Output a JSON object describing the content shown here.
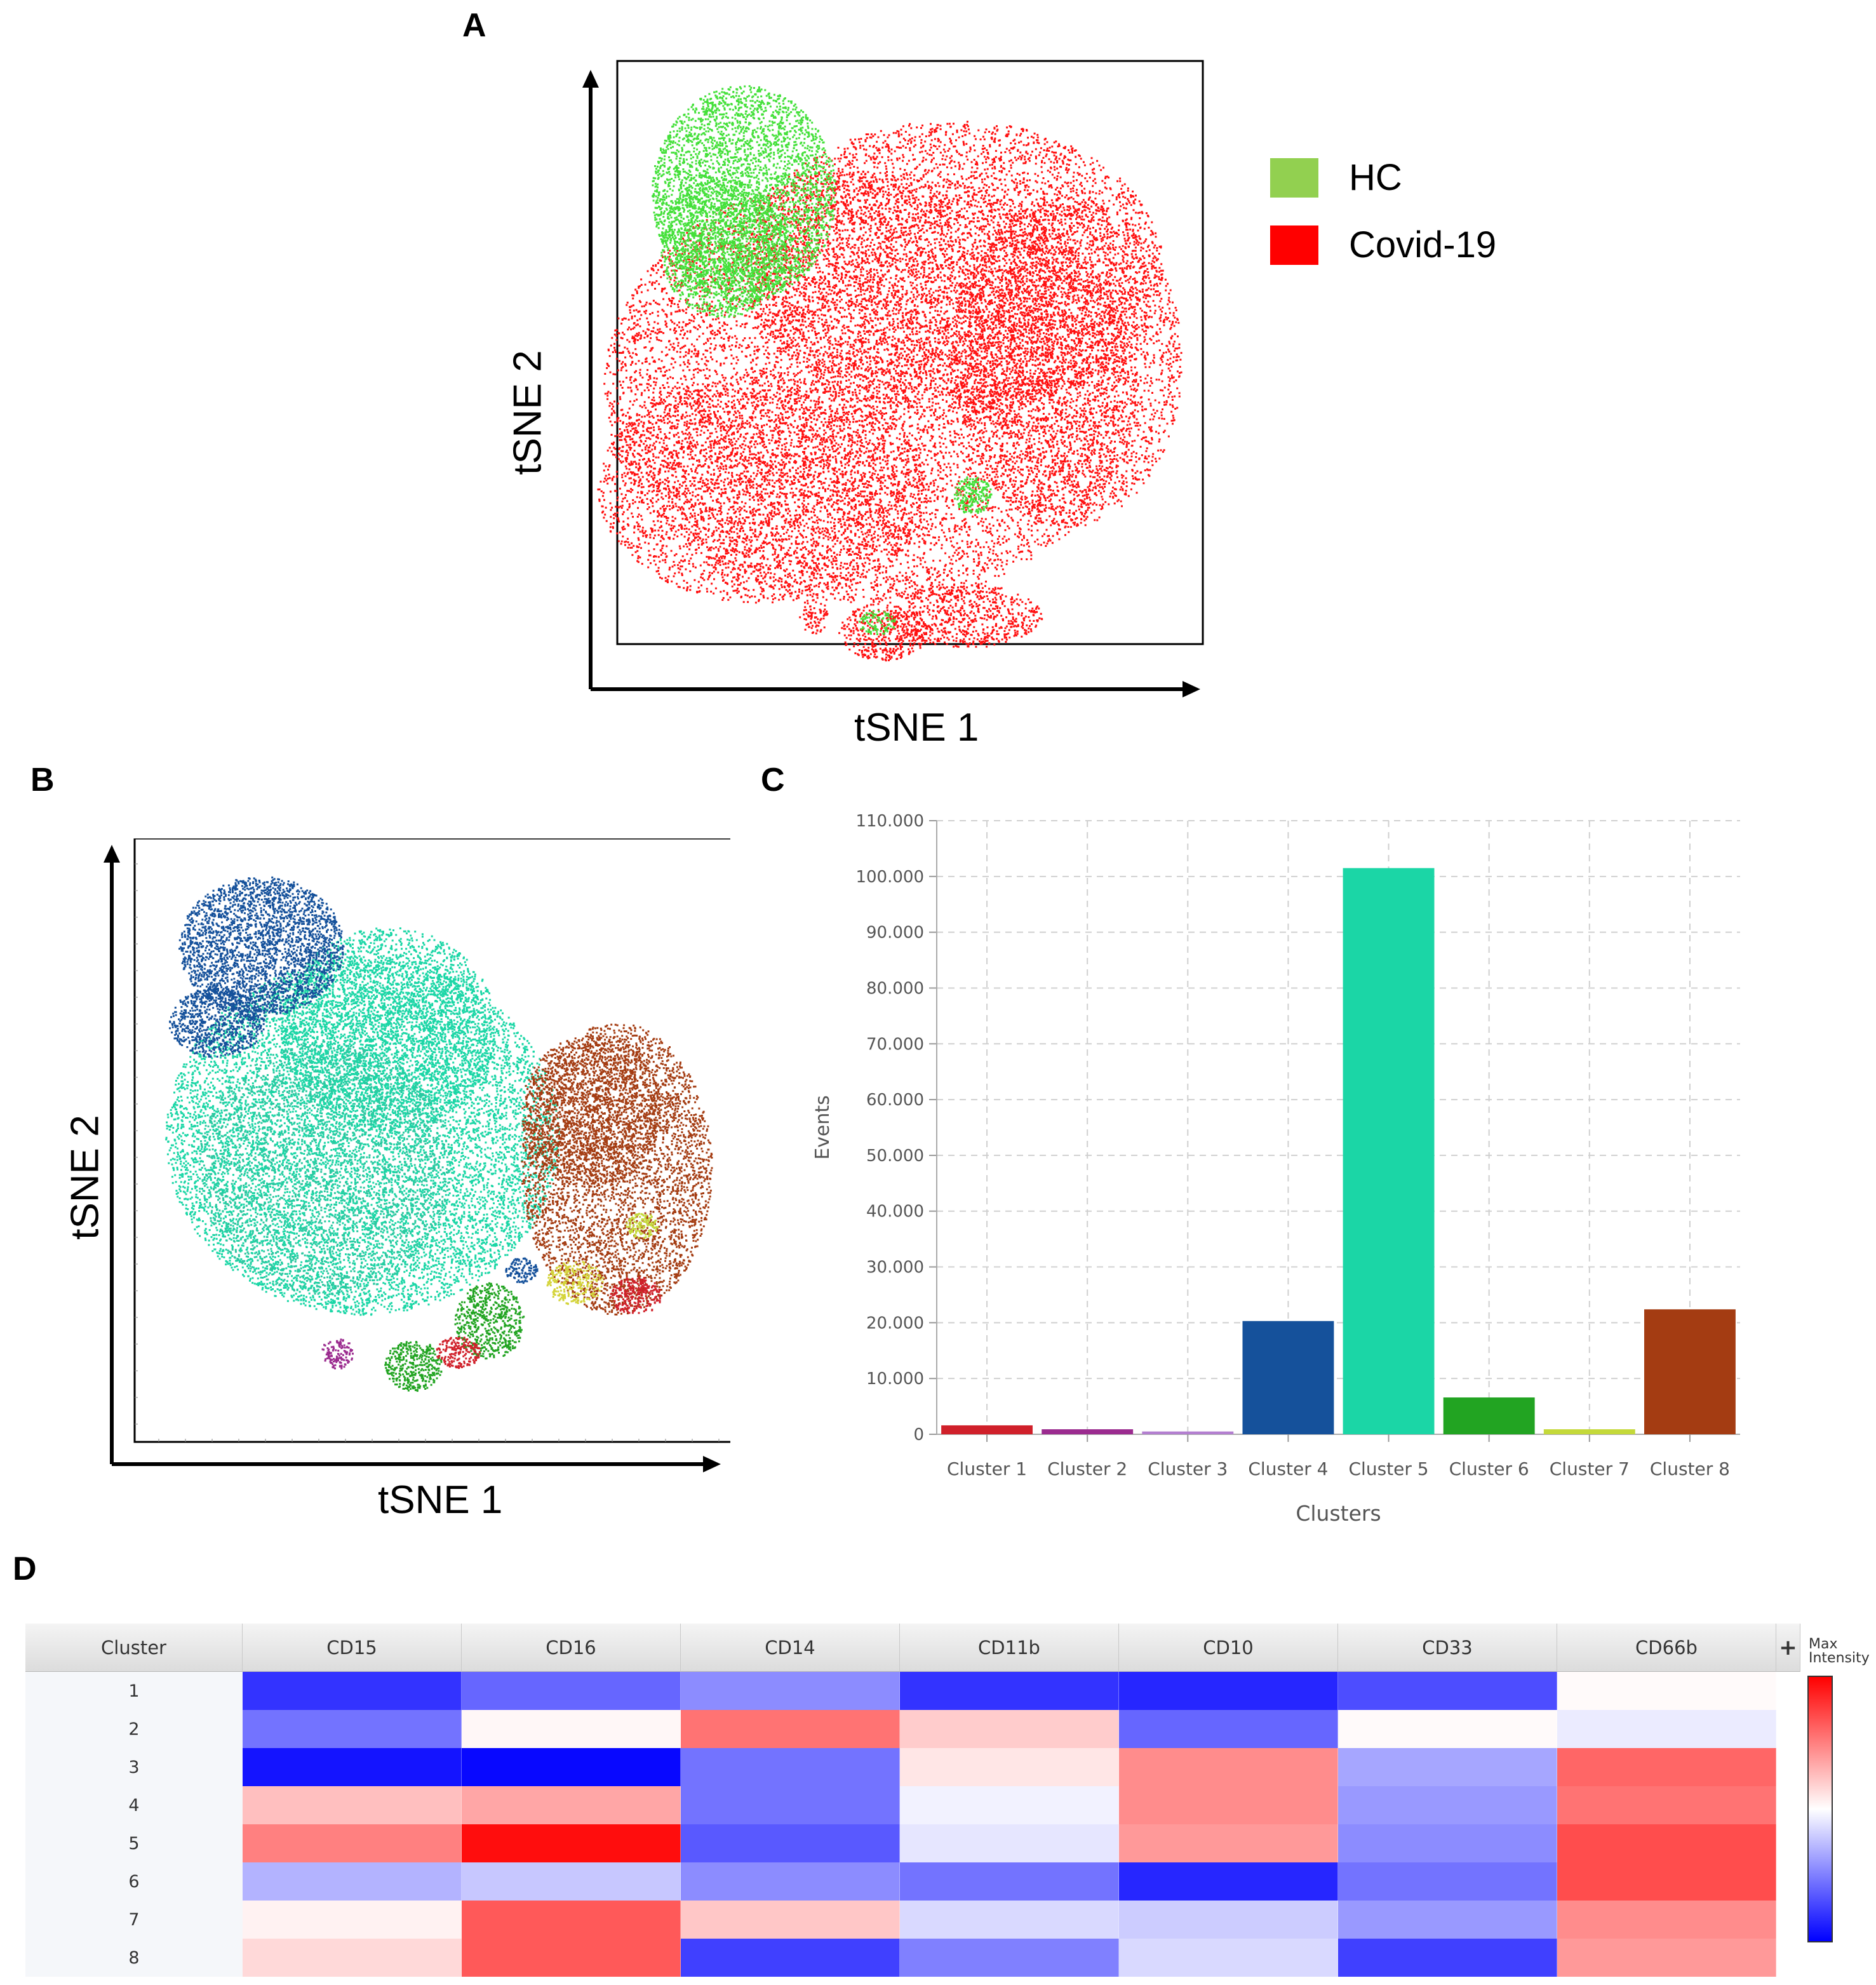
{
  "panels": {
    "a": "A",
    "b": "B",
    "c": "C",
    "d": "D"
  },
  "panel_a": {
    "xlabel": "tSNE 1",
    "ylabel": "tSNE 2",
    "legend": [
      {
        "label": "HC",
        "color": "#92d050"
      },
      {
        "label": "Covid-19",
        "color": "#ff0000"
      }
    ]
  },
  "panel_b": {
    "xlabel": "tSNE 1",
    "ylabel": "tSNE 2"
  },
  "chart_data": [
    {
      "type": "bar",
      "title": "",
      "xlabel": "Clusters",
      "ylabel": "Events",
      "ylim": [
        0,
        110000
      ],
      "yticks": [
        "0",
        "10.000",
        "20.000",
        "30.000",
        "40.000",
        "50.000",
        "60.000",
        "70.000",
        "80.000",
        "90.000",
        "100.000",
        "110.000"
      ],
      "categories": [
        "Cluster 1",
        "Cluster 2",
        "Cluster 3",
        "Cluster 4",
        "Cluster 5",
        "Cluster 6",
        "Cluster 7",
        "Cluster 8"
      ],
      "values": [
        1600,
        900,
        500,
        20300,
        101500,
        6600,
        900,
        22400
      ],
      "colors": [
        "#d0202a",
        "#9b2b8f",
        "#b37fd0",
        "#15519b",
        "#1bd6a6",
        "#22a422",
        "#c4d93a",
        "#a43c12"
      ],
      "grid": true
    },
    {
      "type": "heatmap",
      "corner_label": "Cluster",
      "columns": [
        "CD15",
        "CD16",
        "CD14",
        "CD11b",
        "CD10",
        "CD33",
        "CD66b"
      ],
      "rows": [
        "1",
        "2",
        "3",
        "4",
        "5",
        "6",
        "7",
        "8"
      ],
      "values": [
        [
          -0.8,
          -0.6,
          -0.45,
          -0.8,
          -0.85,
          -0.7,
          0.02
        ],
        [
          -0.55,
          0.03,
          0.55,
          0.2,
          -0.6,
          0.02,
          -0.08
        ],
        [
          -0.92,
          -0.97,
          -0.55,
          0.1,
          0.45,
          -0.35,
          0.6
        ],
        [
          0.25,
          0.35,
          -0.55,
          -0.05,
          0.45,
          -0.4,
          0.55
        ],
        [
          0.5,
          0.95,
          -0.65,
          -0.1,
          0.4,
          -0.45,
          0.7
        ],
        [
          -0.3,
          -0.22,
          -0.45,
          -0.55,
          -0.85,
          -0.55,
          0.7
        ],
        [
          0.05,
          0.65,
          0.22,
          -0.15,
          -0.2,
          -0.4,
          0.45
        ],
        [
          0.15,
          0.65,
          -0.75,
          -0.5,
          -0.15,
          -0.75,
          0.4
        ]
      ],
      "value_range": [
        -1,
        1
      ],
      "add_button": "+",
      "scale_label": "Max\nIntensity"
    }
  ]
}
